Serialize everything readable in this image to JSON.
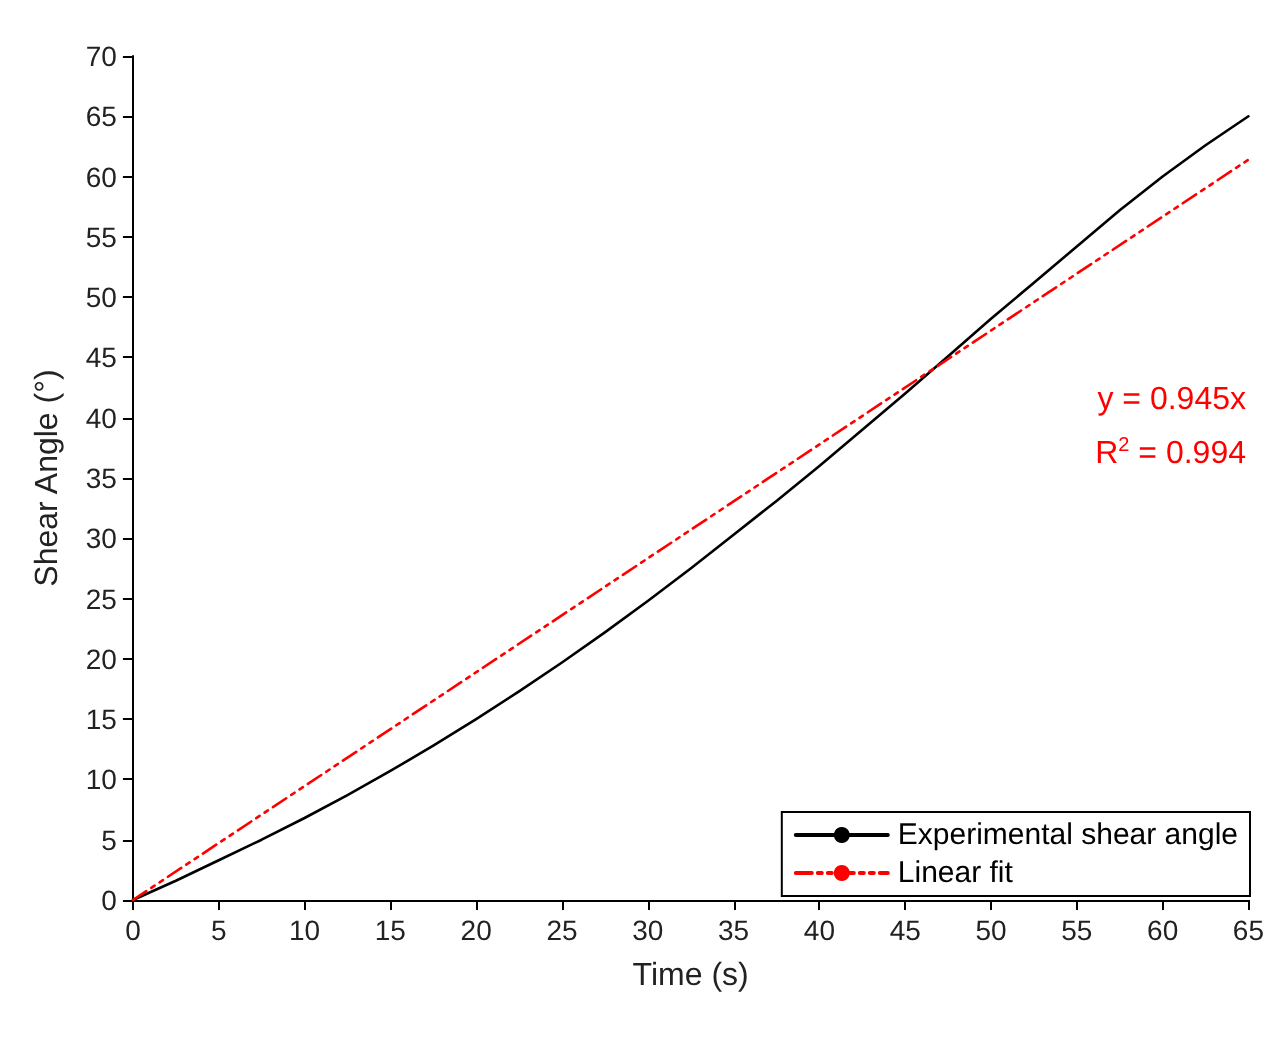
{
  "chart_data": {
    "type": "line",
    "xlabel": "Time (s)",
    "ylabel": "Shear Angle (°)",
    "xlim": [
      0,
      65
    ],
    "xticks": [
      0,
      5,
      10,
      15,
      20,
      25,
      30,
      35,
      40,
      45,
      50,
      55,
      60,
      65
    ],
    "ylim": [
      0,
      70
    ],
    "yticks": [
      0,
      5,
      10,
      15,
      20,
      25,
      30,
      35,
      40,
      45,
      50,
      55,
      60,
      65,
      70
    ],
    "grid": false,
    "legend": "bottom right",
    "marker": "none",
    "series": [
      {
        "name": "Experimental shear angle",
        "color": "#000000",
        "line_style": "solid",
        "x": [
          0,
          2.5,
          5,
          7.5,
          10,
          12.5,
          15,
          17.5,
          20,
          22.5,
          25,
          27.5,
          30,
          32.5,
          35,
          37.5,
          40,
          42.5,
          45,
          47.5,
          50,
          52.5,
          55,
          57.5,
          60,
          62.5,
          65
        ],
        "values": [
          0,
          1.6,
          3.3,
          5,
          6.8,
          8.7,
          10.7,
          12.8,
          15,
          17.3,
          19.7,
          22.2,
          24.8,
          27.5,
          30.3,
          33.1,
          36,
          39,
          42,
          45.1,
          48.2,
          51.2,
          54.2,
          57.2,
          60,
          62.6,
          65
        ]
      },
      {
        "name": "Linear fit",
        "color": "#ff0000",
        "line_style": "dashed",
        "x": [
          0,
          65
        ],
        "values": [
          0,
          61.4
        ]
      }
    ],
    "annotations": [
      "y = 0.945x",
      "R$^{2}$ = 0.994"
    ]
  }
}
